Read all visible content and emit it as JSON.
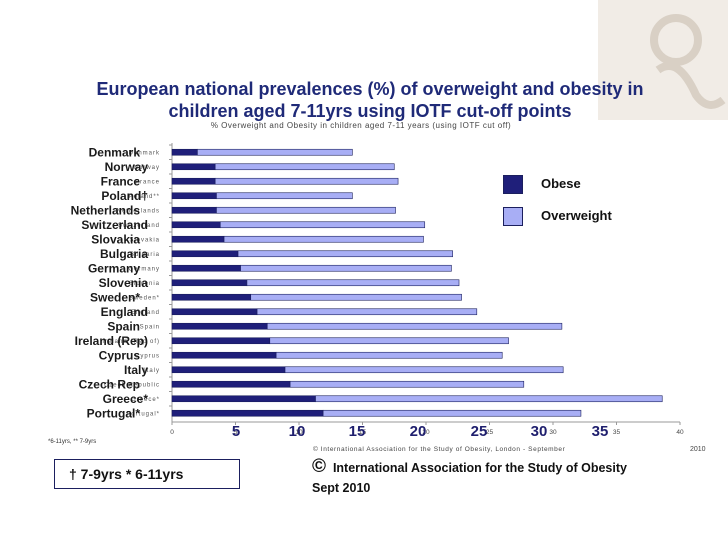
{
  "slide_title": "European national prevalences (%) of overweight and obesity in children aged 7-11yrs using IOTF cut-off points",
  "age_note": "† 7-9yrs  * 6-11yrs",
  "copyright_symbol": "©",
  "copyright_text": "International Association for the Study of Obesity Sept 2010",
  "footnote_small": "*6-11yrs, ** 7-9yrs",
  "source_small": "© International Association for the Study of Obesity, London - September",
  "year_small": "2010",
  "colors": {
    "obese": "#1f1f7a",
    "overweight": "#a8aef5",
    "axis": "#999999",
    "title": "#1f2a78"
  },
  "chart_data": {
    "type": "bar",
    "orientation": "horizontal",
    "stacked": true,
    "title": "% Overweight and Obesity in children aged 7-11 years (using IOTF cut off)",
    "categories": [
      "Denmark",
      "Norway",
      "France",
      "Poland†",
      "Netherlands",
      "Switzerland",
      "Slovakia",
      "Bulgaria",
      "Germany",
      "Slovenia",
      "Sweden*",
      "England",
      "Spain",
      "Ireland (Rep)",
      "Cyprus",
      "Italy",
      "Czech Rep",
      "Greece*",
      "Portugal*"
    ],
    "inner_category_labels": [
      "Denmark",
      "Norway",
      "France",
      "Poland**",
      "Netherlands",
      "Switzerland",
      "Slovakia",
      "Bulgaria",
      "Germany",
      "Slovenia",
      "Sweden*",
      "England",
      "Spain",
      "Ireland (Rep of)",
      "Cyprus",
      "Italy",
      "Czech Republic",
      "Greece*",
      "Portugal*"
    ],
    "series": [
      {
        "name": "Obese",
        "values": [
          2,
          3.4,
          3.4,
          3.5,
          3.5,
          3.8,
          4.1,
          5.2,
          5.4,
          5.9,
          6.2,
          6.7,
          7.5,
          7.7,
          8.2,
          8.9,
          9.3,
          11.3,
          11.9
        ]
      },
      {
        "name": "Overweight",
        "values": [
          12.2,
          14.1,
          14.4,
          10.7,
          14.1,
          16.1,
          15.7,
          16.9,
          16.6,
          16.7,
          16.6,
          17.3,
          23.2,
          18.8,
          17.8,
          21.9,
          18.4,
          27.3,
          20.3
        ]
      }
    ],
    "xlim": [
      0,
      40
    ],
    "x_ticks": [
      "0",
      "5",
      "10",
      "15",
      "20",
      "25",
      "30",
      "35",
      "40"
    ],
    "overlay_tick_labels": [
      "5",
      "10",
      "15",
      "20",
      "25",
      "30",
      "35"
    ],
    "legend_position": "right"
  }
}
